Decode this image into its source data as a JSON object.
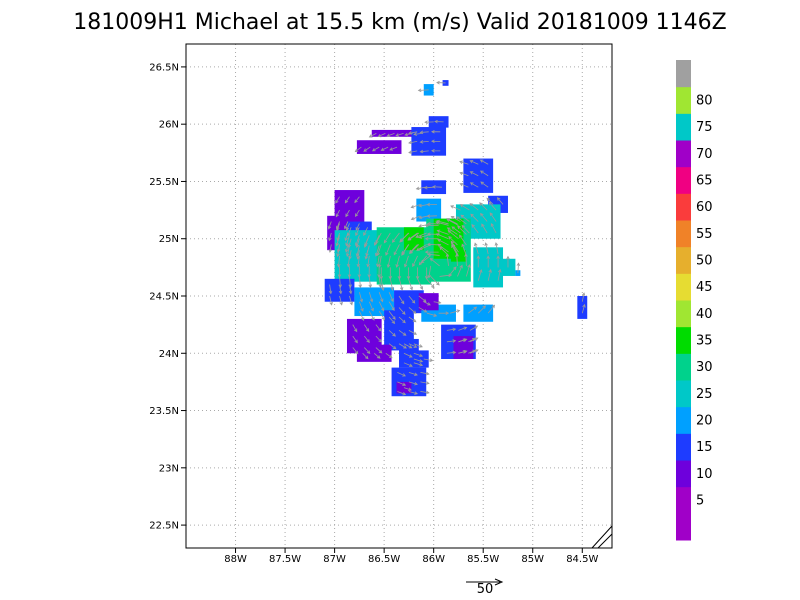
{
  "title": "181009H1 Michael at 15.5 km (m/s) Valid 20181009 1146Z",
  "map": {
    "lon_range": [
      -88.5,
      -84.2
    ],
    "lat_range": [
      22.3,
      26.7
    ],
    "x_ticks": [
      {
        "value": -88.0,
        "label": "88W"
      },
      {
        "value": -87.5,
        "label": "87.5W"
      },
      {
        "value": -87.0,
        "label": "87W"
      },
      {
        "value": -86.5,
        "label": "86.5W"
      },
      {
        "value": -86.0,
        "label": "86W"
      },
      {
        "value": -85.5,
        "label": "85.5W"
      },
      {
        "value": -85.0,
        "label": "85W"
      },
      {
        "value": -84.5,
        "label": "84.5W"
      }
    ],
    "y_ticks": [
      {
        "value": 22.5,
        "label": "22.5N"
      },
      {
        "value": 23.0,
        "label": "23N"
      },
      {
        "value": 23.5,
        "label": "23.5N"
      },
      {
        "value": 24.0,
        "label": "24N"
      },
      {
        "value": 24.5,
        "label": "24.5N"
      },
      {
        "value": 25.0,
        "label": "25N"
      },
      {
        "value": 25.5,
        "label": "25.5N"
      },
      {
        "value": 26.0,
        "label": "26N"
      },
      {
        "value": 26.5,
        "label": "26.5N"
      }
    ],
    "grid": true,
    "grid_color": "#aaaaaa"
  },
  "colorbar": {
    "levels": [
      {
        "label": "",
        "color": "#a000c8"
      },
      {
        "label": "5",
        "color": "#a000c8"
      },
      {
        "label": "10",
        "color": "#6e00dc"
      },
      {
        "label": "15",
        "color": "#1e3cff"
      },
      {
        "label": "20",
        "color": "#00a0ff"
      },
      {
        "label": "25",
        "color": "#00c8c8"
      },
      {
        "label": "30",
        "color": "#00d28c"
      },
      {
        "label": "35",
        "color": "#00dc00"
      },
      {
        "label": "40",
        "color": "#a0e632"
      },
      {
        "label": "45",
        "color": "#e6dc32"
      },
      {
        "label": "50",
        "color": "#e6af2d"
      },
      {
        "label": "55",
        "color": "#f08228"
      },
      {
        "label": "60",
        "color": "#fa3c3c"
      },
      {
        "label": "65",
        "color": "#f00082"
      },
      {
        "label": "70",
        "color": "#a000c8"
      },
      {
        "label": "75",
        "color": "#00c8c8"
      },
      {
        "label": "80",
        "color": "#a0e632"
      },
      {
        "label": "",
        "color": "#a0a0a0"
      }
    ]
  },
  "reference_vector": {
    "label": "50"
  },
  "wind_cells": [
    {
      "lon": -86.35,
      "lat": 25.92,
      "w": 0.55,
      "h": 0.06,
      "v": 8
    },
    {
      "lon": -86.55,
      "lat": 25.8,
      "w": 0.45,
      "h": 0.12,
      "v": 7
    },
    {
      "lon": -86.05,
      "lat": 25.85,
      "w": 0.35,
      "h": 0.25,
      "v": 11
    },
    {
      "lon": -85.95,
      "lat": 26.02,
      "w": 0.2,
      "h": 0.1,
      "v": 12
    },
    {
      "lon": -86.05,
      "lat": 26.3,
      "w": 0.1,
      "h": 0.1,
      "v": 19
    },
    {
      "lon": -85.88,
      "lat": 26.36,
      "w": 0.06,
      "h": 0.05,
      "v": 12
    },
    {
      "lon": -86.85,
      "lat": 25.25,
      "w": 0.3,
      "h": 0.35,
      "v": 6
    },
    {
      "lon": -86.95,
      "lat": 25.05,
      "w": 0.25,
      "h": 0.3,
      "v": 8
    },
    {
      "lon": -86.75,
      "lat": 25.0,
      "w": 0.25,
      "h": 0.3,
      "v": 13
    },
    {
      "lon": -86.0,
      "lat": 25.45,
      "w": 0.25,
      "h": 0.12,
      "v": 14
    },
    {
      "lon": -85.55,
      "lat": 25.55,
      "w": 0.3,
      "h": 0.3,
      "v": 13
    },
    {
      "lon": -85.35,
      "lat": 25.3,
      "w": 0.2,
      "h": 0.15,
      "v": 12
    },
    {
      "lon": -86.05,
      "lat": 25.25,
      "w": 0.25,
      "h": 0.2,
      "v": 17
    },
    {
      "lon": -85.55,
      "lat": 25.15,
      "w": 0.45,
      "h": 0.3,
      "v": 20
    },
    {
      "lon": -86.75,
      "lat": 24.85,
      "w": 0.5,
      "h": 0.45,
      "v": 22
    },
    {
      "lon": -86.3,
      "lat": 24.85,
      "w": 0.55,
      "h": 0.5,
      "v": 25
    },
    {
      "lon": -85.85,
      "lat": 24.9,
      "w": 0.45,
      "h": 0.55,
      "v": 27
    },
    {
      "lon": -85.45,
      "lat": 24.75,
      "w": 0.3,
      "h": 0.35,
      "v": 24
    },
    {
      "lon": -85.25,
      "lat": 24.75,
      "w": 0.15,
      "h": 0.15,
      "v": 22
    },
    {
      "lon": -86.2,
      "lat": 25.0,
      "w": 0.2,
      "h": 0.2,
      "v": 31
    },
    {
      "lon": -85.85,
      "lat": 25.0,
      "w": 0.3,
      "h": 0.35,
      "v": 32
    },
    {
      "lon": -85.75,
      "lat": 24.85,
      "w": 0.15,
      "h": 0.1,
      "v": 33
    },
    {
      "lon": -86.95,
      "lat": 24.55,
      "w": 0.3,
      "h": 0.2,
      "v": 14
    },
    {
      "lon": -86.6,
      "lat": 24.45,
      "w": 0.4,
      "h": 0.25,
      "v": 18
    },
    {
      "lon": -86.25,
      "lat": 24.45,
      "w": 0.3,
      "h": 0.2,
      "v": 14
    },
    {
      "lon": -85.95,
      "lat": 24.35,
      "w": 0.35,
      "h": 0.15,
      "v": 17
    },
    {
      "lon": -85.55,
      "lat": 24.35,
      "w": 0.3,
      "h": 0.15,
      "v": 19
    },
    {
      "lon": -86.7,
      "lat": 24.15,
      "w": 0.35,
      "h": 0.3,
      "v": 9
    },
    {
      "lon": -86.35,
      "lat": 24.2,
      "w": 0.3,
      "h": 0.35,
      "v": 11
    },
    {
      "lon": -86.05,
      "lat": 24.45,
      "w": 0.2,
      "h": 0.15,
      "v": 5
    },
    {
      "lon": -86.6,
      "lat": 24.0,
      "w": 0.35,
      "h": 0.15,
      "v": 7
    },
    {
      "lon": -86.25,
      "lat": 24.0,
      "w": 0.2,
      "h": 0.25,
      "v": 13
    },
    {
      "lon": -85.75,
      "lat": 24.1,
      "w": 0.35,
      "h": 0.3,
      "v": 12
    },
    {
      "lon": -85.7,
      "lat": 24.05,
      "w": 0.2,
      "h": 0.2,
      "v": 7
    },
    {
      "lon": -86.25,
      "lat": 23.75,
      "w": 0.35,
      "h": 0.25,
      "v": 12
    },
    {
      "lon": -86.3,
      "lat": 23.7,
      "w": 0.15,
      "h": 0.1,
      "v": 7
    },
    {
      "lon": -86.15,
      "lat": 23.95,
      "w": 0.2,
      "h": 0.15,
      "v": 13
    },
    {
      "lon": -84.5,
      "lat": 24.4,
      "w": 0.1,
      "h": 0.2,
      "v": 13
    },
    {
      "lon": -85.15,
      "lat": 24.7,
      "w": 0.05,
      "h": 0.05,
      "v": 18
    }
  ]
}
